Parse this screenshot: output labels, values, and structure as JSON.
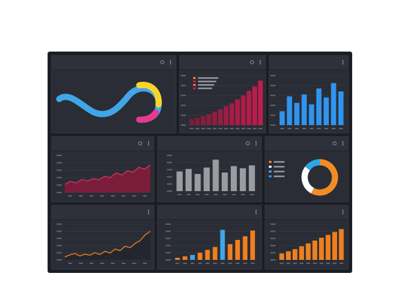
{
  "dashboard": {
    "panels": [
      {
        "id": "p1",
        "title": "",
        "chart_data": {
          "type": "line",
          "title": "",
          "xlabel": "",
          "ylabel": "",
          "grid": false
        }
      },
      {
        "id": "p2",
        "title": "",
        "chart_data": {
          "type": "bar",
          "title": "",
          "xlabel": "",
          "ylabel": "",
          "ylim": [
            0,
            100
          ],
          "grid": true,
          "legend": {
            "placement": "top-left",
            "entries": [
              "",
              "",
              "",
              ""
            ]
          },
          "values": [
            12,
            15,
            18,
            22,
            27,
            32,
            38,
            44,
            52,
            60,
            69,
            78,
            90
          ]
        }
      },
      {
        "id": "p3",
        "title": "",
        "chart_data": {
          "type": "bar",
          "title": "",
          "xlabel": "",
          "ylabel": "",
          "ylim": [
            0,
            100
          ],
          "grid": true,
          "values": [
            28,
            58,
            45,
            62,
            42,
            74,
            56,
            85,
            68
          ]
        }
      },
      {
        "id": "p4",
        "title": "",
        "chart_data": {
          "type": "area",
          "title": "",
          "xlabel": "",
          "ylabel": "",
          "ylim": [
            0,
            100
          ],
          "grid": true,
          "values": [
            22,
            30,
            26,
            35,
            31,
            37,
            34,
            44,
            40,
            53,
            47,
            58,
            55,
            68,
            63,
            74
          ]
        }
      },
      {
        "id": "p5",
        "title": "",
        "chart_data": {
          "type": "bar",
          "title": "",
          "xlabel": "",
          "ylabel": "",
          "ylim": [
            0,
            100
          ],
          "grid": true,
          "values": [
            55,
            62,
            48,
            66,
            88,
            52,
            70,
            64,
            72
          ]
        }
      },
      {
        "id": "p6",
        "title": "",
        "chart_data": {
          "type": "pie",
          "title": "",
          "donut": true,
          "legend": {
            "placement": "left",
            "entries": [
              "",
              "",
              "",
              ""
            ]
          },
          "series": [
            {
              "value": 58,
              "color": "#f28c28"
            },
            {
              "value": 27,
              "color": "#ffffff"
            },
            {
              "value": 15,
              "color": "#2aa7e8"
            }
          ]
        }
      },
      {
        "id": "p7",
        "title": "",
        "chart_data": {
          "type": "line",
          "title": "",
          "xlabel": "",
          "ylabel": "",
          "ylim": [
            0,
            100
          ],
          "grid": true,
          "values": [
            8,
            14,
            18,
            11,
            16,
            13,
            20,
            15,
            24,
            19,
            30,
            26,
            38,
            34,
            46,
            54,
            70,
            80
          ]
        }
      },
      {
        "id": "p8",
        "title": "",
        "chart_data": {
          "type": "bar",
          "title": "",
          "xlabel": "",
          "ylabel": "",
          "ylim": [
            0,
            100
          ],
          "grid": true,
          "values": [
            6,
            10,
            14,
            20,
            28,
            36,
            84,
            44,
            56,
            66,
            82
          ]
        }
      },
      {
        "id": "p9",
        "title": "",
        "chart_data": {
          "type": "bar",
          "title": "",
          "xlabel": "",
          "ylabel": "",
          "ylim": [
            0,
            100
          ],
          "grid": true,
          "values": [
            18,
            24,
            30,
            38,
            46,
            54,
            62,
            70,
            78,
            86
          ]
        }
      }
    ]
  },
  "colors": {
    "dashboard_bg": "#1b1d24",
    "panel_bg": "#2a2d35",
    "grid": "#3a3d46",
    "crimson": "#c21c4c",
    "crimson_dark": "#7a1d3b",
    "blue": "#2f95f0",
    "grey_bar": "#9a9ca1",
    "orange": "#f07f1f",
    "wave_blue": "#3fa7e8",
    "wave_yellow": "#f7d62b",
    "wave_pink": "#e63a8c"
  }
}
